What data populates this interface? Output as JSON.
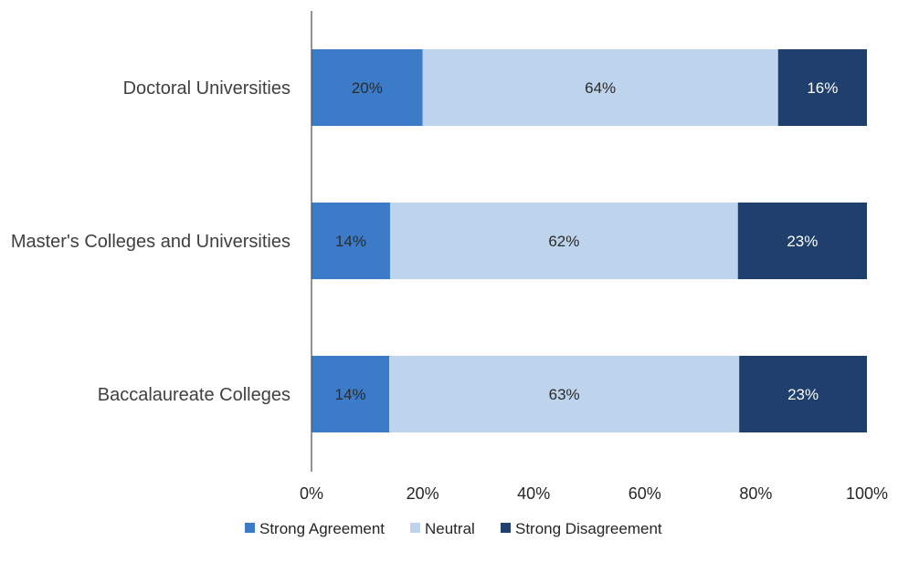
{
  "chart_data": {
    "type": "bar",
    "orientation": "horizontal",
    "stacked": true,
    "categories": [
      "Doctoral Universities",
      "Master's Colleges and Universities",
      "Baccalaureate Colleges"
    ],
    "series": [
      {
        "name": "Strong Agreement",
        "values": [
          20,
          14,
          14
        ],
        "labels": [
          "20%",
          "14%",
          "14%"
        ],
        "color": "#3b7bc8",
        "label_color": "#2b2b2b"
      },
      {
        "name": "Neutral",
        "values": [
          64,
          62,
          63
        ],
        "labels": [
          "64%",
          "62%",
          "63%"
        ],
        "color": "#bed3ec",
        "label_color": "#2b2b2b"
      },
      {
        "name": "Strong Disagreement",
        "values": [
          16,
          23,
          23
        ],
        "labels": [
          "16%",
          "23%",
          "23%"
        ],
        "color": "#1f3f6d",
        "label_color": "#ffffff"
      }
    ],
    "xlim": [
      0,
      100
    ],
    "xticks": [
      0,
      20,
      40,
      60,
      80,
      100
    ],
    "xtick_labels": [
      "0%",
      "20%",
      "40%",
      "60%",
      "80%",
      "100%"
    ],
    "grid": false,
    "legend_position": "bottom"
  }
}
